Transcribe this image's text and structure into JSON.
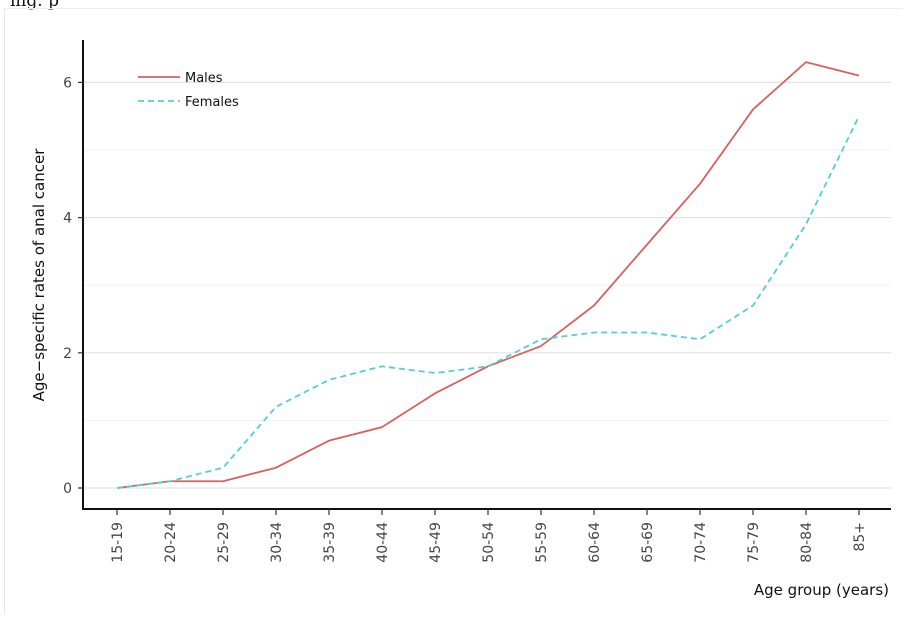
{
  "header_fragment": "ing. p",
  "chart_data": {
    "type": "line",
    "title": "",
    "xlabel": "Age group (years)",
    "ylabel": "Age−specific rates of anal cancer",
    "categories": [
      "15-19",
      "20-24",
      "25-29",
      "30-34",
      "35-39",
      "40-44",
      "45-49",
      "50-54",
      "55-59",
      "60-64",
      "65-69",
      "70-74",
      "75-79",
      "80-84",
      "85+"
    ],
    "ylim": [
      -0.3,
      6.6
    ],
    "yticks": [
      0,
      2,
      4,
      6
    ],
    "grid": true,
    "legend_position": "top-left",
    "series": [
      {
        "name": "Males",
        "color": "#d9605c",
        "dash": "solid",
        "values": [
          0.0,
          0.1,
          0.1,
          0.3,
          0.7,
          0.9,
          1.4,
          1.8,
          2.1,
          2.7,
          3.6,
          4.5,
          5.6,
          6.3,
          6.1
        ]
      },
      {
        "name": "Females",
        "color": "#4fcfd8",
        "dash": "dashed",
        "values": [
          0.0,
          0.1,
          0.3,
          1.2,
          1.6,
          1.8,
          1.7,
          1.8,
          2.2,
          2.3,
          2.3,
          2.2,
          2.7,
          3.9,
          5.5
        ]
      }
    ]
  }
}
